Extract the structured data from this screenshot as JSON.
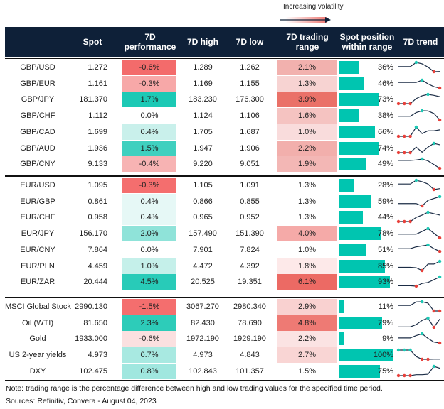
{
  "legend": {
    "label": "Increasing volatility"
  },
  "headers": {
    "spot": "Spot",
    "perf": "7D performance",
    "high": "7D high",
    "low": "7D low",
    "range": "7D trading range",
    "position": "Spot position within range",
    "trend": "7D trend"
  },
  "colors": {
    "header": "#0e2038",
    "bar": "#00c5b0",
    "max_marker": "#1cc9b5",
    "min_marker": "#e8403a"
  },
  "groups": [
    [
      {
        "label": "GBP/USD",
        "spot": "1.272",
        "perf": "-0.6%",
        "perf_color": "#f36b6b",
        "high": "1.289",
        "low": "1.262",
        "range": "2.1%",
        "range_color": "#f2b1ae",
        "pos": 36,
        "pos_label": "36%",
        "trend": [
          0.55,
          0.55,
          0.55,
          1,
          0.85,
          0.5,
          0,
          0.02
        ]
      },
      {
        "label": "GBP/EUR",
        "spot": "1.161",
        "perf": "-0.3%",
        "perf_color": "#f7a8a8",
        "high": "1.169",
        "low": "1.155",
        "range": "1.3%",
        "range_color": "#f7d3d2",
        "pos": 46,
        "pos_label": "46%",
        "trend": [
          0.6,
          0.6,
          0.6,
          0.6,
          0.85,
          0.45,
          0.15,
          0
        ]
      },
      {
        "label": "GBP/JPY",
        "spot": "181.370",
        "perf": "1.7%",
        "perf_color": "#1cc9b5",
        "high": "183.230",
        "low": "176.300",
        "range": "3.9%",
        "range_color": "#ea7168",
        "pos": 73,
        "pos_label": "73%",
        "trend": [
          0,
          0,
          0,
          0.55,
          0.85,
          1,
          0.9,
          0.75
        ]
      },
      {
        "label": "GBP/CHF",
        "spot": "1.112",
        "perf": "0.0%",
        "perf_color": "#ffffff",
        "high": "1.124",
        "low": "1.106",
        "range": "1.6%",
        "range_color": "#f5c3c1",
        "pos": 38,
        "pos_label": "38%",
        "trend": [
          0.4,
          0.4,
          0.4,
          0.8,
          1,
          0.98,
          0.7,
          0
        ]
      },
      {
        "label": "GBP/CAD",
        "spot": "1.699",
        "perf": "0.4%",
        "perf_color": "#c9f0eb",
        "high": "1.705",
        "low": "1.687",
        "range": "1.0%",
        "range_color": "#f9dcdc",
        "pos": 66,
        "pos_label": "66%",
        "trend": [
          0,
          0,
          0,
          1,
          0.3,
          0.6,
          0.6,
          0.7
        ]
      },
      {
        "label": "GBP/AUD",
        "spot": "1.936",
        "perf": "1.5%",
        "perf_color": "#3fd0bf",
        "high": "1.947",
        "low": "1.906",
        "range": "2.2%",
        "range_color": "#f2afac",
        "pos": 74,
        "pos_label": "74%",
        "trend": [
          0,
          0,
          0,
          0.6,
          0.05,
          0.6,
          1,
          0.85
        ]
      },
      {
        "label": "GBP/CNY",
        "spot": "9.133",
        "perf": "-0.4%",
        "perf_color": "#f7b3b3",
        "high": "9.220",
        "low": "9.051",
        "range": "1.9%",
        "range_color": "#f3b7b5",
        "pos": 49,
        "pos_label": "49%",
        "trend": [
          0.85,
          0.85,
          0.85,
          0.9,
          1,
          0.8,
          0.4,
          0
        ]
      }
    ],
    [
      {
        "label": "EUR/USD",
        "spot": "1.095",
        "perf": "-0.3%",
        "perf_color": "#f46e6e",
        "high": "1.105",
        "low": "1.091",
        "range": "1.3%",
        "range_color": "#ffffff",
        "pos": 28,
        "pos_label": "28%",
        "trend": [
          0.6,
          0.6,
          0.6,
          1,
          0.85,
          0.6,
          0,
          0.1
        ]
      },
      {
        "label": "EUR/GBP",
        "spot": "0.861",
        "perf": "0.4%",
        "perf_color": "#e6f8f6",
        "high": "0.866",
        "low": "0.855",
        "range": "1.3%",
        "range_color": "#ffffff",
        "pos": 59,
        "pos_label": "59%",
        "trend": [
          0.25,
          0.25,
          0.25,
          0.25,
          0,
          0.6,
          0.8,
          1
        ]
      },
      {
        "label": "EUR/CHF",
        "spot": "0.958",
        "perf": "0.4%",
        "perf_color": "#e6f8f6",
        "high": "0.965",
        "low": "0.952",
        "range": "1.3%",
        "range_color": "#ffffff",
        "pos": 44,
        "pos_label": "44%",
        "trend": [
          0,
          0,
          0,
          0.45,
          0.7,
          1,
          0.85,
          0.7
        ]
      },
      {
        "label": "EUR/JPY",
        "spot": "156.170",
        "perf": "2.0%",
        "perf_color": "#8fe3d9",
        "high": "157.490",
        "low": "151.390",
        "range": "4.0%",
        "range_color": "#f5aaa8",
        "pos": 78,
        "pos_label": "78%",
        "trend": [
          0.4,
          0.4,
          0.4,
          0.4,
          0.7,
          1,
          0.5,
          0
        ]
      },
      {
        "label": "EUR/CNY",
        "spot": "7.864",
        "perf": "0.0%",
        "perf_color": "#ffffff",
        "high": "7.901",
        "low": "7.824",
        "range": "1.0%",
        "range_color": "#ffffff",
        "pos": 51,
        "pos_label": "51%",
        "trend": [
          0.6,
          0.6,
          0.6,
          0.8,
          0.9,
          1,
          0.6,
          0.3
        ]
      },
      {
        "label": "EUR/PLN",
        "spot": "4.459",
        "perf": "1.0%",
        "perf_color": "#c5f0ea",
        "high": "4.472",
        "low": "4.392",
        "range": "1.8%",
        "range_color": "#fde9e9",
        "pos": 85,
        "pos_label": "85%",
        "trend": [
          0.35,
          0.35,
          0.35,
          0.3,
          0,
          0.7,
          0.7,
          1
        ]
      },
      {
        "label": "EUR/ZAR",
        "spot": "20.444",
        "perf": "4.5%",
        "perf_color": "#28cbb8",
        "high": "20.525",
        "low": "19.351",
        "range": "6.1%",
        "range_color": "#ec6a64",
        "pos": 93,
        "pos_label": "93%",
        "trend": [
          0.05,
          0.05,
          0.05,
          0,
          0.3,
          0.4,
          0.7,
          1
        ]
      }
    ],
    [
      {
        "label": "MSCI Global Stock",
        "spot": "2990.130",
        "perf": "-1.5%",
        "perf_color": "#f46e6e",
        "high": "3067.270",
        "low": "2980.340",
        "range": "2.9%",
        "range_color": "#f9d1d0",
        "pos": 11,
        "pos_label": "11%",
        "trend": [
          0.6,
          0.6,
          0.6,
          0.98,
          1,
          0.85,
          0,
          0
        ]
      },
      {
        "label": "Oil (WTI)",
        "spot": "81.650",
        "perf": "2.3%",
        "perf_color": "#2dccb9",
        "high": "82.430",
        "low": "78.690",
        "range": "4.8%",
        "range_color": "#ee7a74",
        "pos": 79,
        "pos_label": "79%",
        "trend": [
          0.05,
          0.05,
          0.05,
          0.3,
          0.75,
          1,
          0,
          0.9
        ]
      },
      {
        "label": "Gold",
        "spot": "1933.000",
        "perf": "-0.6%",
        "perf_color": "#fbe0e0",
        "high": "1972.190",
        "low": "1929.190",
        "range": "2.2%",
        "range_color": "#fbe3e3",
        "pos": 9,
        "pos_label": "9%",
        "trend": [
          0.55,
          0.55,
          0.55,
          0.8,
          1,
          0.5,
          0.1,
          0
        ]
      },
      {
        "label": "US 2-year yields",
        "spot": "4.973",
        "perf": "0.7%",
        "perf_color": "#a8e9e1",
        "high": "4.973",
        "low": "4.843",
        "range": "2.7%",
        "range_color": "#f9d5d4",
        "pos": 100,
        "pos_label": "100%",
        "trend": [
          1,
          1,
          1,
          0.3,
          0,
          0,
          0.02,
          0.02
        ]
      },
      {
        "label": "DXY",
        "spot": "102.475",
        "perf": "0.8%",
        "perf_color": "#a0e7df",
        "high": "102.843",
        "low": "101.357",
        "range": "1.5%",
        "range_color": "#ffffff",
        "pos": 75,
        "pos_label": "75%",
        "trend": [
          0,
          0,
          0,
          0.1,
          0.1,
          0.15,
          1,
          0.8
        ]
      }
    ]
  ],
  "footer": {
    "note": "Note: trading range is the percentage difference between high and low trading values for the specified time period.",
    "sources": "Sources: Refinitiv, Convera - August 04, 2023"
  }
}
